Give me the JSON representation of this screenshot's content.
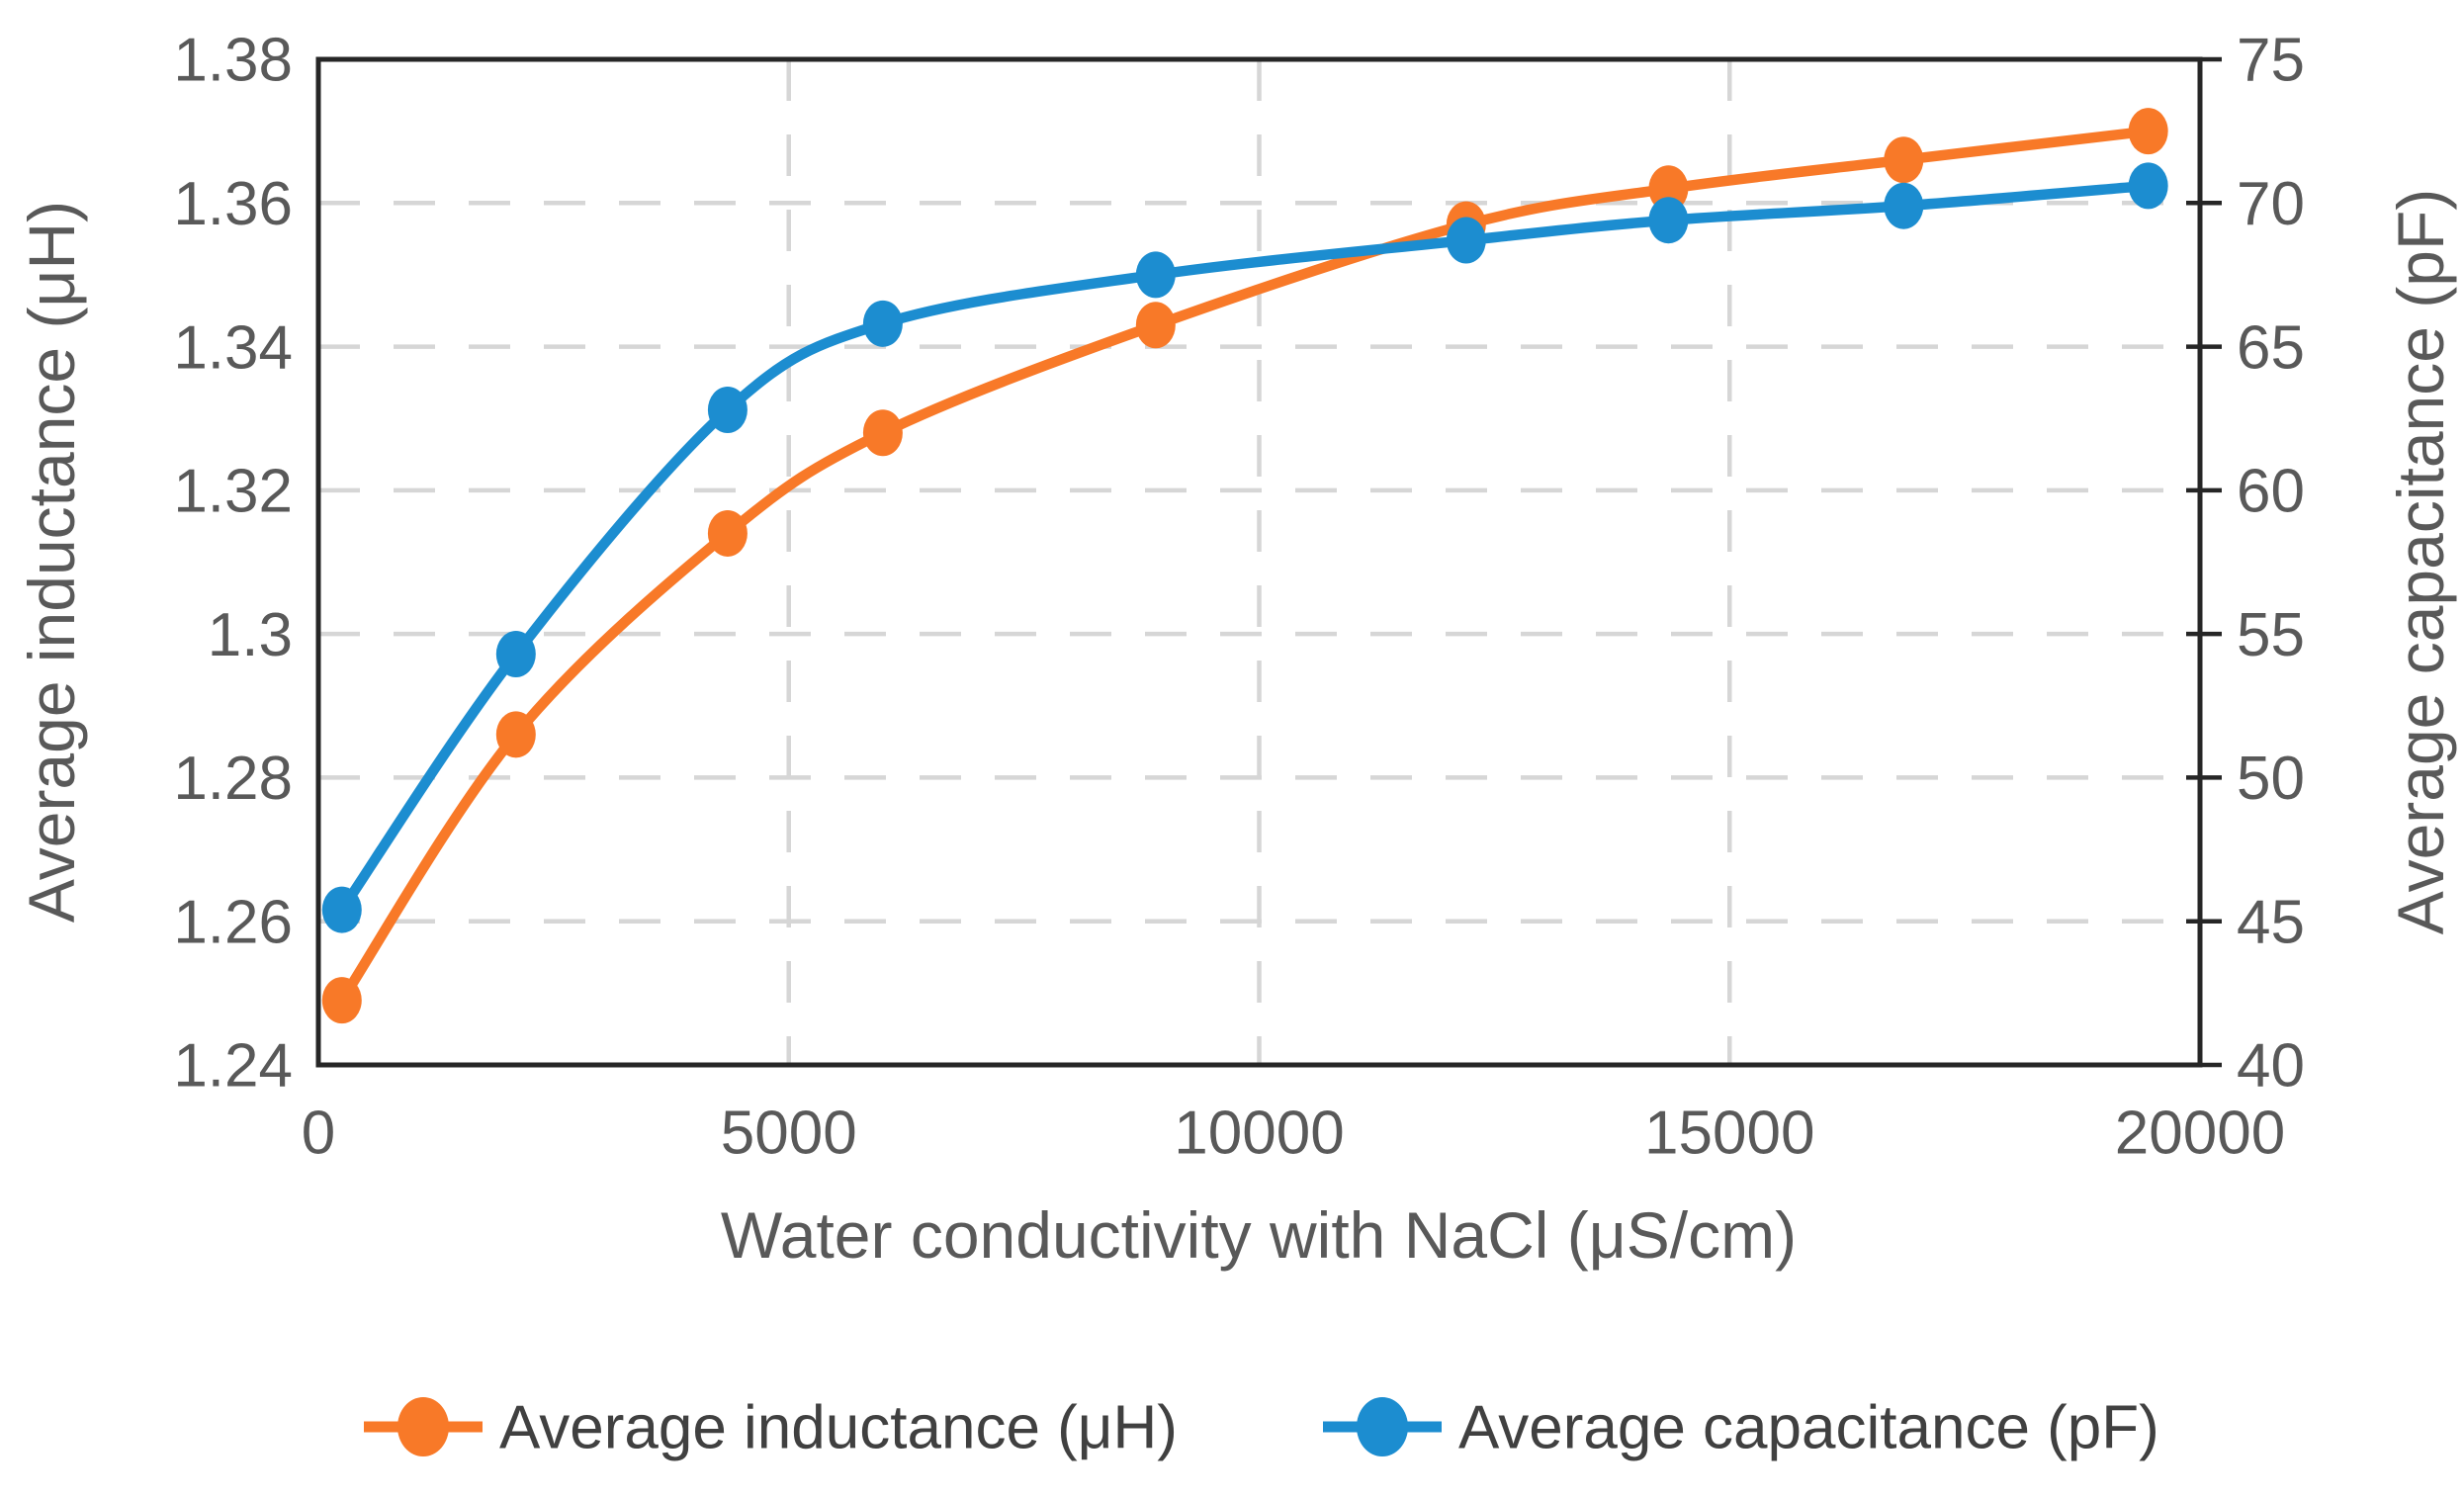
{
  "chart_data": {
    "type": "line",
    "x": [
      250,
      2100,
      4350,
      6000,
      8900,
      12200,
      14350,
      16850,
      19450
    ],
    "series": [
      {
        "name": "Average inductance (μH)",
        "axis": "left",
        "color": "#F87928",
        "marker": "circle",
        "values": [
          1.249,
          1.286,
          1.314,
          1.328,
          1.343,
          1.357,
          1.362,
          1.366,
          1.37
        ]
      },
      {
        "name": "Average capacitance (pF)",
        "axis": "right",
        "color": "#1C8DD0",
        "marker": "circle",
        "values": [
          45.4,
          54.3,
          62.8,
          65.8,
          67.5,
          68.7,
          69.4,
          69.9,
          70.6
        ]
      }
    ],
    "xlabel": "Water conductivity with NaCl (μS/cm)",
    "ylabel_left": "Average inductance (μH)",
    "ylabel_right": "Average capacitance (pF)",
    "x_axis": {
      "min": 0,
      "max": 20000,
      "ticks": [
        0,
        5000,
        10000,
        15000,
        20000
      ],
      "tick_labels": [
        "0",
        "5000",
        "10000",
        "15000",
        "20000"
      ]
    },
    "y_left": {
      "min": 1.24,
      "max": 1.38,
      "ticks": [
        1.24,
        1.26,
        1.28,
        1.3,
        1.32,
        1.34,
        1.36,
        1.38
      ],
      "tick_labels": [
        "1.24",
        "1.26",
        "1.28",
        "1.3",
        "1.32",
        "1.34",
        "1.36",
        "1.38"
      ]
    },
    "y_right": {
      "min": 40,
      "max": 75,
      "ticks": [
        40,
        45,
        50,
        55,
        60,
        65,
        70,
        75
      ],
      "tick_labels": [
        "40",
        "45",
        "50",
        "55",
        "60",
        "65",
        "70",
        "75"
      ]
    },
    "grid": "dashed",
    "legend_position": "bottom",
    "line_style": "smooth"
  },
  "legend": {
    "items": [
      {
        "label": "Average inductance (μH)",
        "color": "#F87928"
      },
      {
        "label": "Average capacitance (pF)",
        "color": "#1C8DD0"
      }
    ]
  },
  "colors": {
    "series_inductance": "#F87928",
    "series_capacitance": "#1C8DD0",
    "gridline": "#D6D6D6",
    "plot_border": "#262626",
    "tick_text": "#595959",
    "axis_title_text": "#595959",
    "legend_text": "#404040",
    "background": "#FFFFFF"
  }
}
